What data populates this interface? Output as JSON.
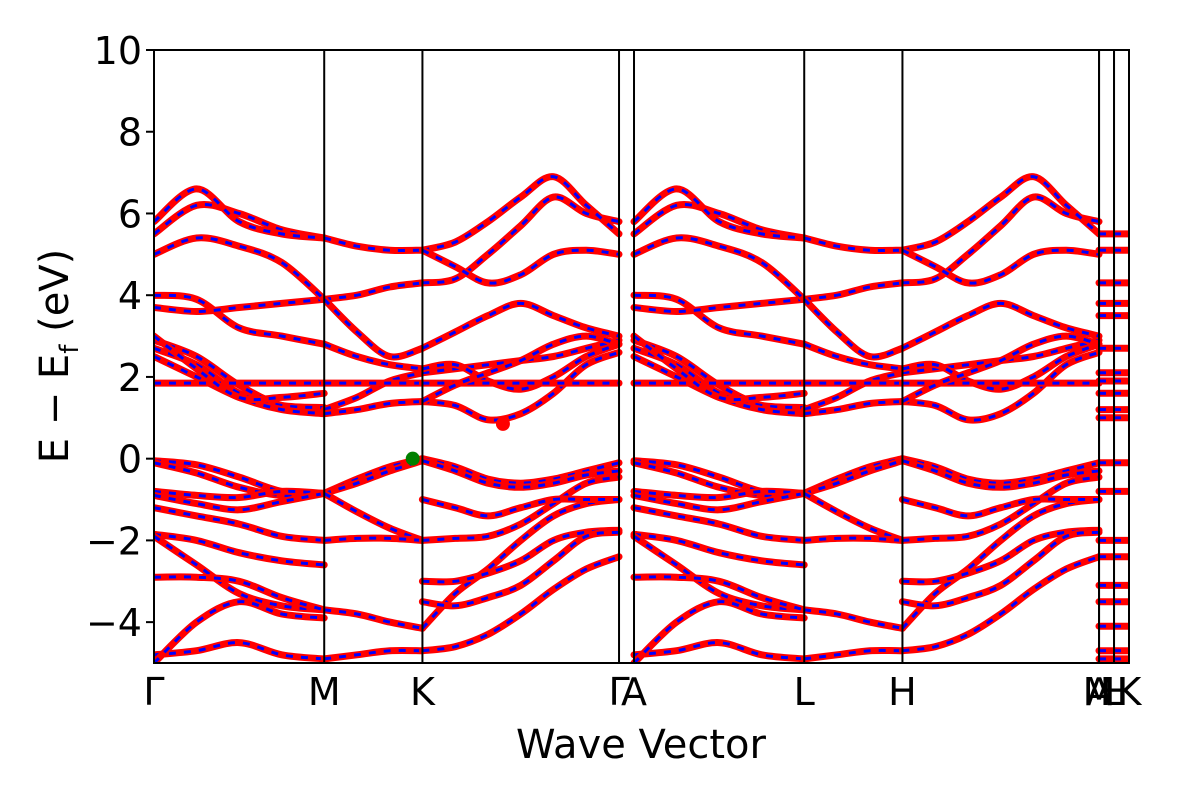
{
  "chart_data": {
    "type": "line",
    "title": "",
    "xlabel": "Wave Vector",
    "ylabel_main": "E − E",
    "ylabel_sub": "f",
    "ylabel_unit": " (eV)",
    "ylim": [
      -5,
      10
    ],
    "yticks": [
      "10",
      "8",
      "6",
      "4",
      "2",
      "0",
      "−2",
      "−4"
    ],
    "ytick_values": [
      10,
      8,
      6,
      4,
      2,
      0,
      -2,
      -4
    ],
    "kpath": [
      {
        "label": "Γ",
        "x": 0.0
      },
      {
        "label": "M",
        "x": 1.0
      },
      {
        "label": "K",
        "x": 1.577
      },
      {
        "label": "Γ",
        "x": 2.732
      },
      {
        "label": "A",
        "x": 2.82
      },
      {
        "label": "L",
        "x": 3.82
      },
      {
        "label": "H",
        "x": 4.397
      },
      {
        "label": "A",
        "x": 5.552
      },
      {
        "label": "M",
        "x": 5.552
      },
      {
        "label": "L",
        "x": 5.64
      },
      {
        "label": "H",
        "x": 5.64
      },
      {
        "label": "K",
        "x": 5.728
      }
    ],
    "xlim": [
      0,
      5.728
    ],
    "series_styles": {
      "primary": "#ff0000",
      "overlay": "#0000ff",
      "marker": "#008000"
    },
    "markers": [
      {
        "x": 1.52,
        "y": 0.0,
        "color": "#008000"
      },
      {
        "x": 2.05,
        "y": 0.85,
        "color": "#ff0000"
      }
    ],
    "bands": [
      [
        -0.05,
        -0.15,
        -0.45,
        -0.8,
        -0.85
      ],
      [
        -0.1,
        -0.35,
        -0.7,
        -0.9,
        -0.85
      ],
      [
        -0.8,
        -0.9,
        -0.95,
        -0.8,
        -0.85
      ],
      [
        -0.9,
        -1.1,
        -1.25,
        -1.05,
        -0.85
      ],
      [
        -1.2,
        -1.4,
        -1.6,
        -1.9,
        -2.0
      ],
      [
        -1.85,
        -2.0,
        -2.3,
        -2.5,
        -2.6
      ],
      [
        -1.9,
        -2.6,
        -3.3,
        -3.6,
        -3.7
      ],
      [
        -2.9,
        -2.9,
        -3.0,
        -3.4,
        -3.7
      ],
      [
        -4.8,
        -4.7,
        -4.5,
        -4.8,
        -4.9
      ],
      [
        -5.0,
        -4.0,
        -3.5,
        -3.8,
        -3.9
      ],
      [
        2.9,
        2.5,
        1.8,
        1.3,
        1.2
      ],
      [
        2.7,
        2.3,
        1.6,
        1.3,
        1.25
      ],
      [
        2.5,
        2.0,
        1.5,
        1.2,
        1.1
      ],
      [
        1.85,
        1.85,
        1.85,
        1.85,
        1.85
      ],
      [
        3.0,
        2.2,
        1.5,
        1.5,
        1.6
      ],
      [
        4.0,
        3.9,
        3.2,
        3.0,
        2.8
      ],
      [
        3.7,
        3.6,
        3.7,
        3.8,
        3.9
      ],
      [
        5.0,
        5.4,
        5.2,
        4.8,
        3.9
      ],
      [
        5.5,
        6.2,
        6.0,
        5.6,
        5.4
      ],
      [
        5.8,
        6.6,
        5.8,
        5.5,
        5.4
      ]
    ],
    "bands_k2": [
      [
        -0.85,
        -0.5,
        -0.2,
        0.0
      ],
      [
        -0.85,
        -0.6,
        -0.3,
        -0.05
      ],
      [
        -0.85,
        -1.3,
        -1.7,
        -2.0
      ],
      [
        -2.0,
        -1.95,
        -1.95,
        -2.0
      ],
      [
        -3.7,
        -3.8,
        -4.0,
        -4.15
      ],
      [
        -4.9,
        -4.8,
        -4.7,
        -4.7
      ],
      [
        1.2,
        1.5,
        1.9,
        2.1
      ],
      [
        1.1,
        1.2,
        1.35,
        1.4
      ],
      [
        2.8,
        2.5,
        2.3,
        2.2
      ],
      [
        3.9,
        4.0,
        4.2,
        4.3
      ],
      [
        5.4,
        5.2,
        5.1,
        5.1
      ],
      [
        3.9,
        3.1,
        2.5,
        2.7
      ],
      [
        1.85,
        1.85,
        1.85,
        1.85
      ]
    ],
    "bands_k3": [
      [
        0.0,
        -0.2,
        -0.5,
        -0.6,
        -0.5,
        -0.3,
        -0.1
      ],
      [
        -0.05,
        -0.3,
        -0.6,
        -0.7,
        -0.6,
        -0.4,
        -0.3
      ],
      [
        -2.0,
        -1.95,
        -1.9,
        -1.6,
        -1.1,
        -0.6,
        -0.45
      ],
      [
        -4.15,
        -3.3,
        -2.7,
        -2.0,
        -1.4,
        -1.1,
        -1.0
      ],
      [
        -3.0,
        -3.0,
        -2.8,
        -2.5,
        -2.0,
        -1.8,
        -1.75
      ],
      [
        -3.5,
        -3.6,
        -3.4,
        -3.1,
        -2.5,
        -1.9,
        -1.8
      ],
      [
        -4.7,
        -4.6,
        -4.3,
        -3.8,
        -3.2,
        -2.7,
        -2.4
      ],
      [
        1.4,
        1.3,
        0.95,
        1.1,
        1.6,
        2.3,
        2.6
      ],
      [
        2.1,
        2.2,
        2.3,
        2.4,
        2.5,
        2.7,
        2.9
      ],
      [
        2.2,
        2.3,
        1.9,
        1.7,
        2.0,
        2.5,
        2.8
      ],
      [
        1.85,
        1.85,
        1.85,
        1.85,
        1.85,
        1.85,
        1.85
      ],
      [
        4.3,
        4.4,
        5.0,
        5.7,
        6.4,
        6.0,
        5.8
      ],
      [
        5.1,
        5.3,
        5.8,
        6.4,
        6.9,
        6.2,
        5.5
      ],
      [
        2.7,
        3.1,
        3.5,
        3.8,
        3.5,
        3.2,
        3.0
      ],
      [
        5.1,
        4.7,
        4.3,
        4.5,
        5.0,
        5.1,
        5.0
      ],
      [
        1.4,
        1.8,
        2.1,
        2.4,
        2.8,
        3.0,
        2.8
      ],
      [
        -1.0,
        -1.2,
        -1.4,
        -1.2,
        -1.0,
        -1.0,
        -1.0
      ]
    ]
  }
}
